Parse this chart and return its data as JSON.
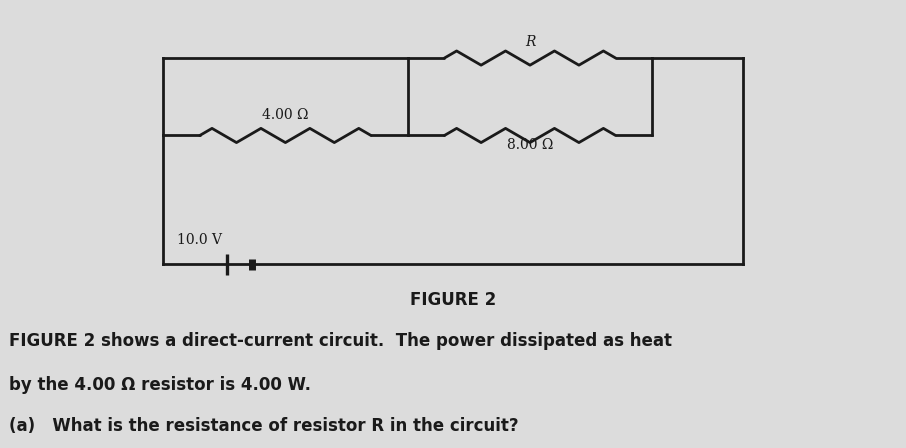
{
  "bg_color": "#dcdcdc",
  "circuit_bg": "#e8e4dc",
  "line_color": "#1a1a1a",
  "line_width": 2.0,
  "figure_title": "FIGURE 2",
  "caption_line1": "FIGURE 2 shows a direct-current circuit.  The power dissipated as heat",
  "caption_line2": "by the 4.00 Ω resistor is 4.00 W.",
  "caption_line3": "(a)   What is the resistance of resistor R in the circuit?",
  "label_4ohm": "4.00 Ω",
  "label_8ohm": "8.00 Ω",
  "label_R": "R",
  "label_voltage": "10.0 V",
  "font_size_labels": 10,
  "font_size_caption": 12,
  "font_size_title": 12
}
